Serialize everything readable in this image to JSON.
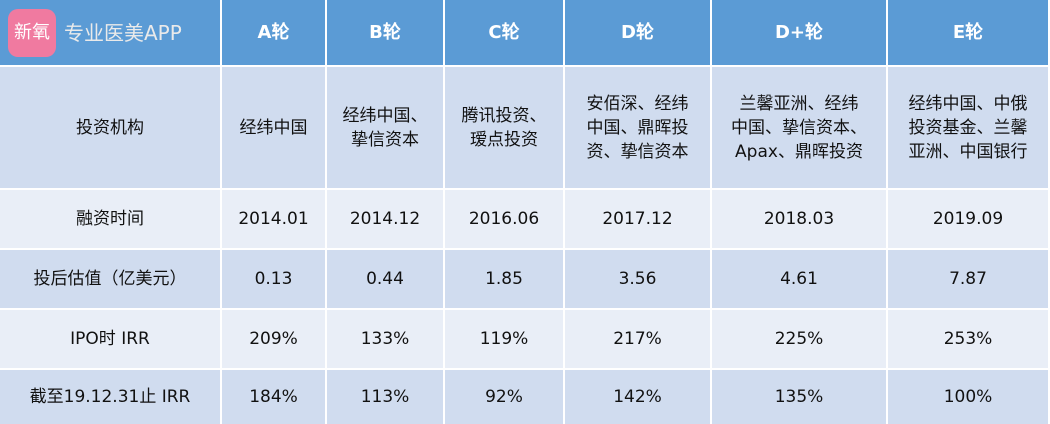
{
  "logo": {
    "icon_text": "新氧",
    "brand": "专业医美APP"
  },
  "table": {
    "columns": [
      "A轮",
      "B轮",
      "C轮",
      "D轮",
      "D+轮",
      "E轮"
    ],
    "rows": [
      {
        "label": "投资机构",
        "cells": [
          [
            "经纬中国"
          ],
          [
            "经纬中国、",
            "挚信资本"
          ],
          [
            "腾讯投资、",
            "瑷点投资"
          ],
          [
            "安佰深、经纬",
            "中国、鼎晖投",
            "资、挚信资本"
          ],
          [
            "兰馨亚洲、经纬",
            "中国、挚信资本、",
            "Apax、鼎晖投资"
          ],
          [
            "经纬中国、中俄",
            "投资基金、兰馨",
            "亚洲、中国银行"
          ]
        ]
      },
      {
        "label": "融资时间",
        "cells": [
          [
            "2014.01"
          ],
          [
            "2014.12"
          ],
          [
            "2016.06"
          ],
          [
            "2017.12"
          ],
          [
            "2018.03"
          ],
          [
            "2019.09"
          ]
        ]
      },
      {
        "label": "投后估值（亿美元）",
        "cells": [
          [
            "0.13"
          ],
          [
            "0.44"
          ],
          [
            "1.85"
          ],
          [
            "3.56"
          ],
          [
            "4.61"
          ],
          [
            "7.87"
          ]
        ]
      },
      {
        "label": "IPO时 IRR",
        "cells": [
          [
            "209%"
          ],
          [
            "133%"
          ],
          [
            "119%"
          ],
          [
            "217%"
          ],
          [
            "225%"
          ],
          [
            "253%"
          ]
        ]
      },
      {
        "label": "截至19.12.31止 IRR",
        "cells": [
          [
            "184%"
          ],
          [
            "113%"
          ],
          [
            "92%"
          ],
          [
            "142%"
          ],
          [
            "135%"
          ],
          [
            "100%"
          ]
        ]
      }
    ]
  }
}
